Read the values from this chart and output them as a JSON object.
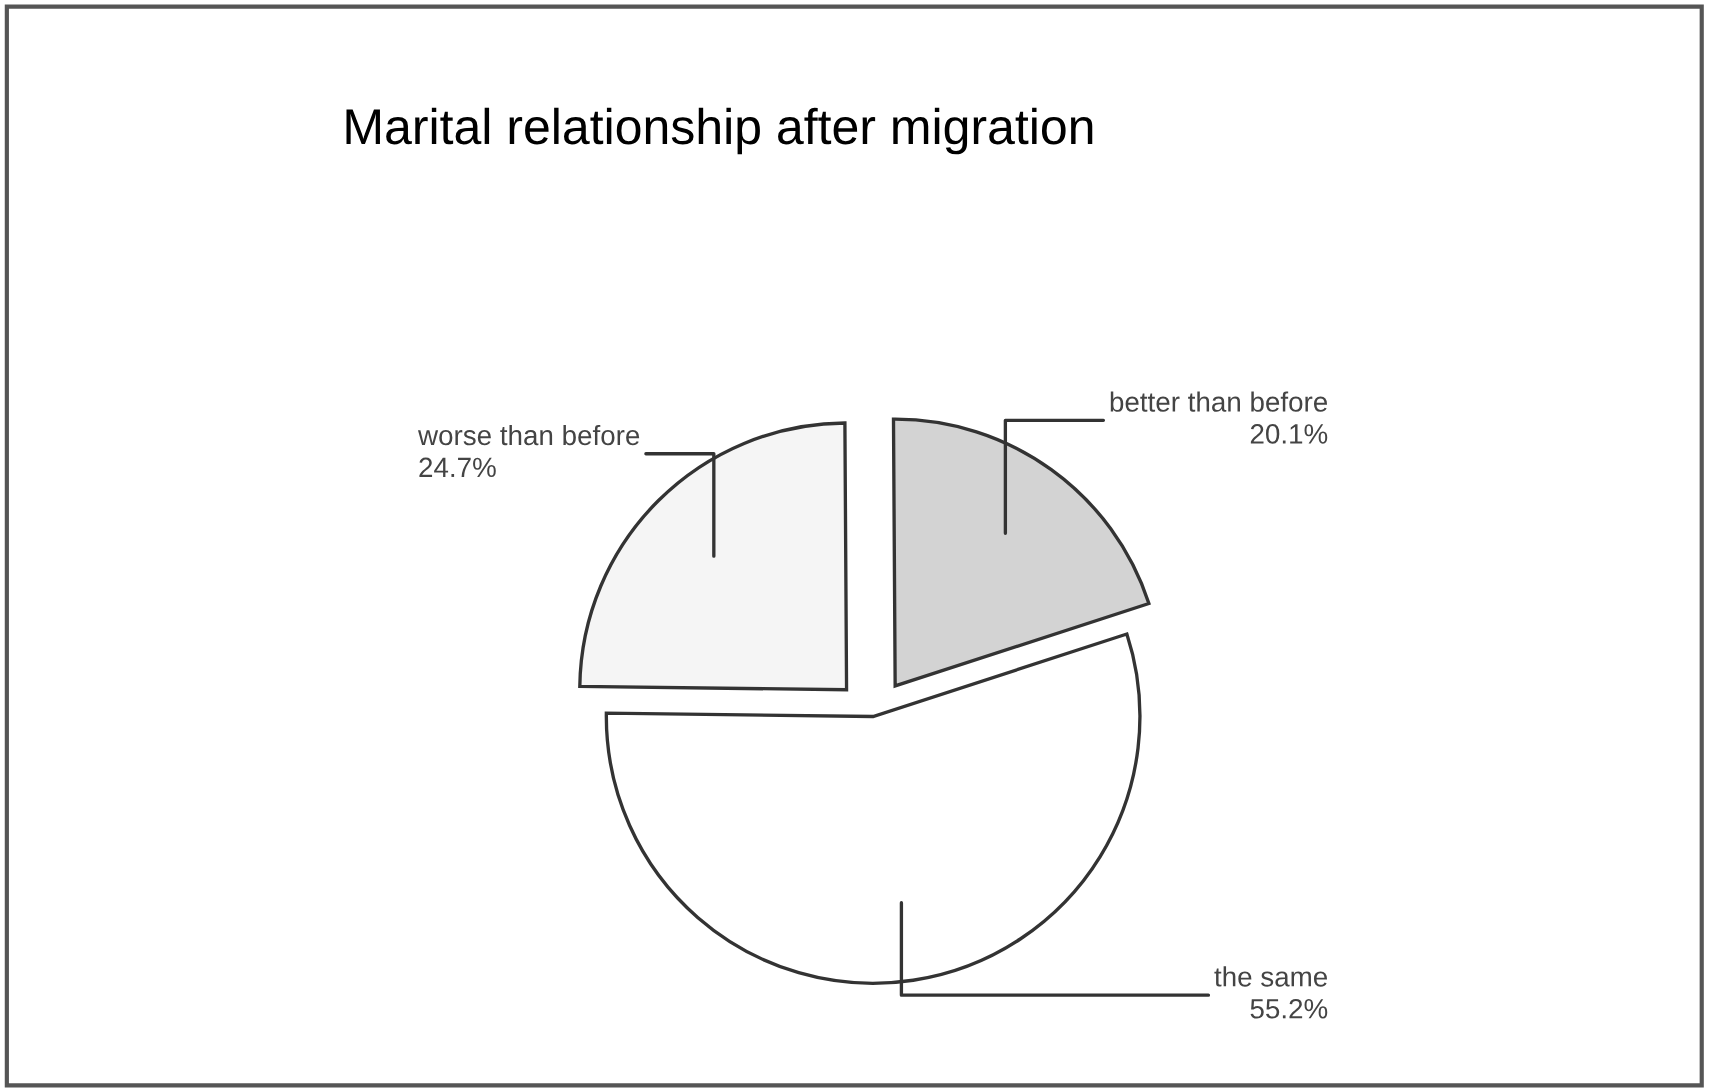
{
  "chart_data": {
    "type": "pie",
    "title": "Marital relationship after migration",
    "categories": [
      "better than before",
      "worse than before",
      "the same"
    ],
    "values": [
      20.1,
      24.7,
      55.2
    ],
    "value_labels": [
      "20.1%",
      "24.7%",
      "55.2%"
    ],
    "colors": [
      "#d3d3d3",
      "#f5f5f5",
      "#ffffff"
    ]
  }
}
